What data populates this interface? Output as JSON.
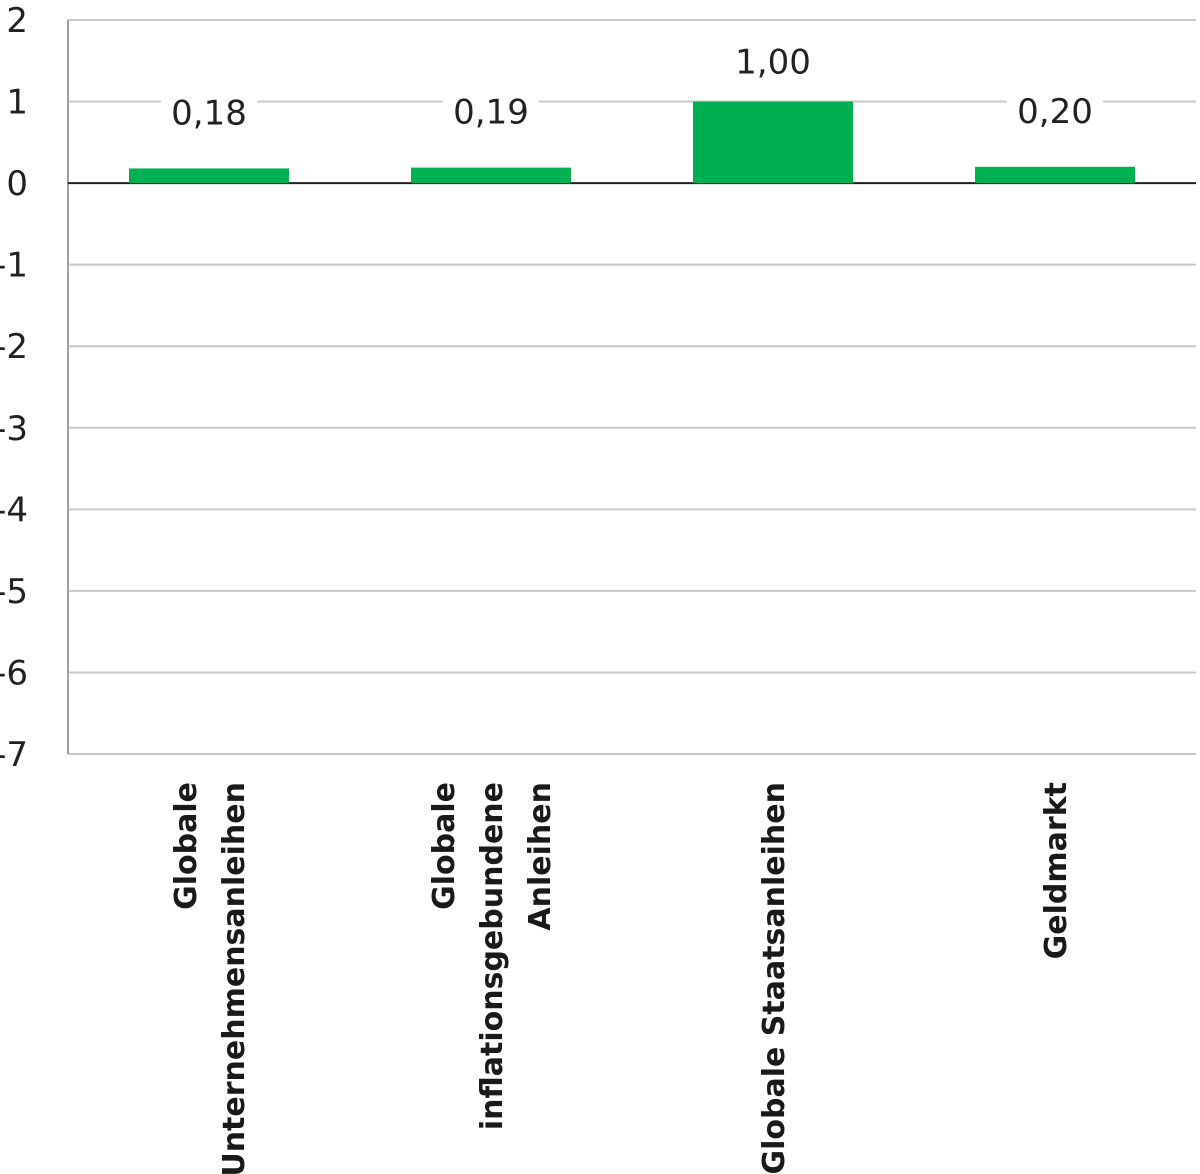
{
  "chart_data": {
    "type": "bar",
    "categories": [
      [
        "Globale",
        "Unternehmensanleihen"
      ],
      [
        "Globale",
        "inflationsgebundene",
        "Anleihen"
      ],
      [
        "Globale Staatsanleihen"
      ],
      [
        "Geldmarkt"
      ]
    ],
    "values": [
      0.18,
      0.19,
      1.0,
      0.2
    ],
    "value_labels": [
      "0,18",
      "0,19",
      "1,00",
      "0,20"
    ],
    "y_ticks": [
      2,
      1,
      0,
      -1,
      -2,
      -3,
      -4,
      -5,
      -6,
      -7
    ],
    "y_tick_labels": [
      "2",
      "1",
      "0",
      "-1",
      "-2",
      "-3",
      "-4",
      "-5",
      "-6",
      "-7"
    ],
    "ylim": [
      -7,
      2
    ],
    "grid": true,
    "title": "",
    "xlabel": "",
    "ylabel": "",
    "colors": {
      "bar": "#00b050",
      "grid": "#c8c8c8",
      "zero_line": "#222222"
    }
  }
}
